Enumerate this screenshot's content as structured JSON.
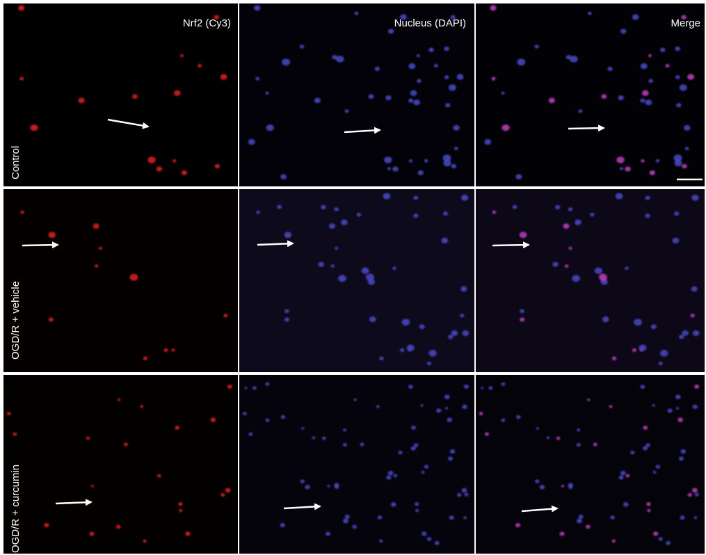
{
  "columns": [
    "Nrf2 (Cy3)",
    "Nucleus (DAPI)",
    "Merge"
  ],
  "rows": [
    "Control",
    "OGD/R + vehicle",
    "OGD/R + curcumin"
  ]
}
